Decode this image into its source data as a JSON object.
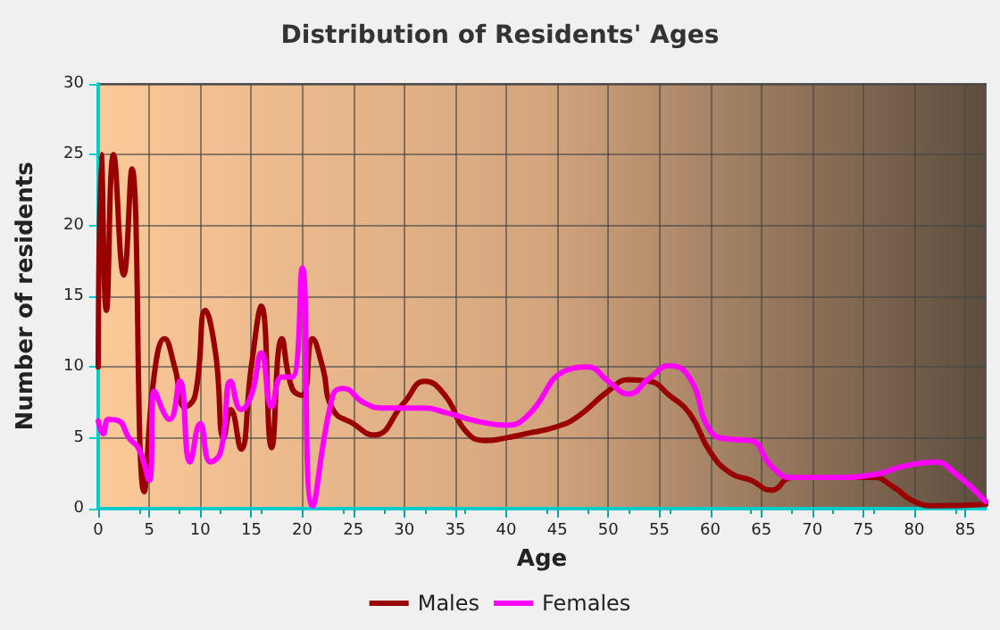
{
  "chart_data": {
    "type": "line",
    "title": "Distribution of Residents' Ages",
    "xlabel": "Age",
    "ylabel": "Number of residents",
    "xlim": [
      0,
      87
    ],
    "xticks": [
      0,
      5,
      10,
      15,
      20,
      25,
      30,
      35,
      40,
      45,
      50,
      55,
      60,
      65,
      70,
      75,
      80,
      85
    ],
    "ylim": [
      0,
      30
    ],
    "yticks": [
      0,
      5,
      10,
      15,
      20,
      25,
      30
    ],
    "grid": true,
    "legend": "bottom",
    "line_style": "solid",
    "marker": "none",
    "series": [
      {
        "name": "Males",
        "color": "#990000",
        "x": [
          0,
          0.3,
          0.8,
          1.5,
          2.5,
          3.3,
          4.5,
          5.5,
          6.5,
          7.5,
          8.5,
          9.5,
          10.5,
          11.5,
          12.3,
          13,
          14,
          15,
          16,
          17,
          18,
          19,
          20,
          21,
          22,
          23,
          25,
          27,
          30,
          32,
          34,
          36,
          38,
          40,
          42,
          45,
          47,
          50,
          52,
          54,
          56,
          58,
          60,
          62,
          64,
          66,
          68,
          72,
          76,
          78,
          80,
          82,
          87
        ],
        "values": [
          10,
          25,
          14,
          25,
          16.5,
          24,
          1.2,
          9.5,
          12,
          10,
          7.2,
          8,
          14,
          11,
          5,
          7,
          4.2,
          10,
          14.3,
          4.3,
          12,
          8.5,
          8,
          12,
          10,
          7,
          6,
          5.2,
          7.5,
          9,
          8,
          5.5,
          4.8,
          5,
          5.3,
          5.8,
          6.5,
          8.3,
          9.1,
          9,
          8,
          6.7,
          4,
          2.5,
          2,
          1.3,
          2.2,
          2.2,
          2.2,
          1.5,
          0.5,
          0.2,
          0.3
        ]
      },
      {
        "name": "Females",
        "color": "#ff00ff",
        "x": [
          0,
          0.5,
          1,
          2,
          3,
          4,
          5,
          5.5,
          7,
          8,
          9,
          10,
          11,
          12,
          13,
          14,
          15,
          16,
          17,
          18,
          19,
          20,
          21,
          23,
          24,
          26,
          28,
          32,
          34,
          37,
          40,
          42,
          46,
          48,
          50,
          52,
          54,
          56,
          58,
          60,
          62,
          64,
          66,
          68,
          72,
          76,
          79,
          82,
          84,
          87
        ],
        "values": [
          6.2,
          5.3,
          6.3,
          6.2,
          5,
          4.2,
          2,
          8.3,
          6.3,
          9,
          3.3,
          6,
          3.3,
          4,
          9,
          7,
          8,
          11,
          7.2,
          9.3,
          9.3,
          17,
          0.2,
          8,
          8.5,
          7.5,
          7.1,
          7.1,
          6.8,
          6.2,
          5.9,
          6.5,
          9.8,
          10,
          9,
          8.1,
          9.2,
          10.1,
          9.2,
          5.5,
          4.9,
          4.8,
          3,
          2.2,
          2.2,
          2.4,
          3,
          3.3,
          2.5,
          0.5
        ]
      }
    ]
  }
}
